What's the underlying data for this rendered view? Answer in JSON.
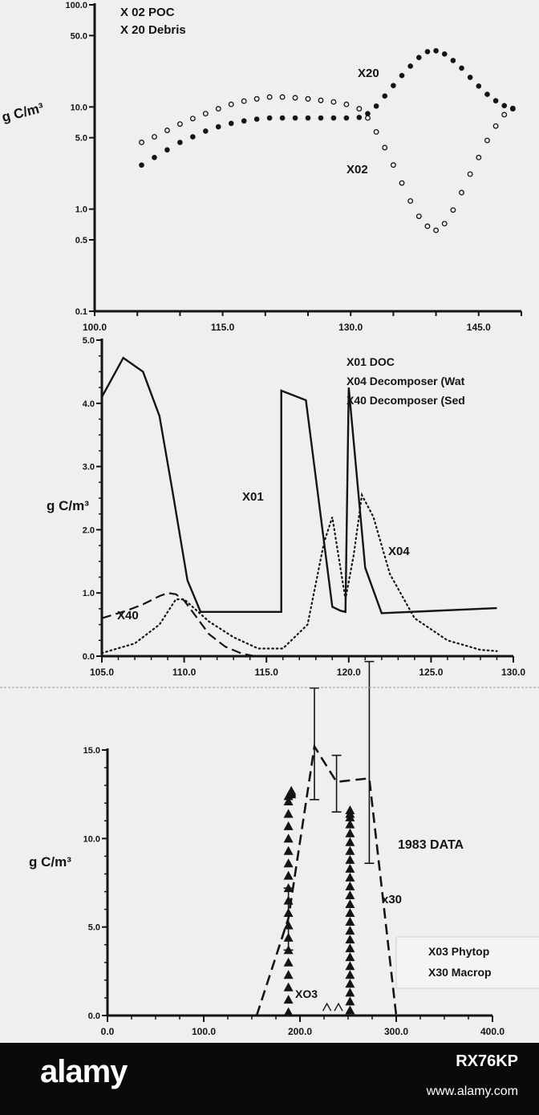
{
  "chart_data": [
    {
      "type": "scatter",
      "legend": [
        "X 02 POC",
        "X 20 Debris"
      ],
      "ylabel": "g C/m³",
      "y_scale": "log",
      "xlim": [
        100.0,
        150.0
      ],
      "ylim": [
        0.1,
        100.0
      ],
      "x_ticks": [
        "100.0",
        "115.0",
        "130.0",
        "145.0"
      ],
      "y_ticks": [
        {
          "v": 100.0,
          "t": "100.0"
        },
        {
          "v": 50.0,
          "t": "50.0"
        },
        {
          "v": 10.0,
          "t": "10.0"
        },
        {
          "v": 5.0,
          "t": "5.0"
        },
        {
          "v": 1.0,
          "t": "1.0"
        },
        {
          "v": 0.5,
          "t": "0.5"
        },
        {
          "v": 0.1,
          "t": "0.1"
        }
      ],
      "series": [
        {
          "label": "X02",
          "marker": "open-circle",
          "x": [
            105.5,
            107,
            108.5,
            110,
            111.5,
            113,
            114.5,
            116,
            117.5,
            119,
            120.5,
            122,
            123.5,
            125,
            126.5,
            128,
            129.5,
            131,
            132,
            133,
            134,
            135,
            136,
            137,
            138,
            139,
            140,
            141,
            142,
            143,
            144,
            145,
            146,
            147,
            148,
            149
          ],
          "y": [
            4.5,
            5.1,
            5.9,
            6.8,
            7.7,
            8.6,
            9.6,
            10.6,
            11.4,
            12.0,
            12.5,
            12.5,
            12.3,
            12.0,
            11.6,
            11.2,
            10.6,
            9.6,
            7.8,
            5.7,
            4.0,
            2.7,
            1.8,
            1.2,
            0.85,
            0.68,
            0.62,
            0.72,
            0.98,
            1.45,
            2.2,
            3.2,
            4.7,
            6.5,
            8.4,
            9.6
          ]
        },
        {
          "label": "X20",
          "marker": "filled-circle",
          "x": [
            105.5,
            107,
            108.5,
            110,
            111.5,
            113,
            114.5,
            116,
            117.5,
            119,
            120.5,
            122,
            123.5,
            125,
            126.5,
            128,
            129.5,
            131,
            132,
            133,
            134,
            135,
            136,
            137,
            138,
            139,
            140,
            141,
            142,
            143,
            144,
            145,
            146,
            147,
            148,
            149
          ],
          "y": [
            2.7,
            3.2,
            3.8,
            4.5,
            5.1,
            5.8,
            6.4,
            6.9,
            7.3,
            7.6,
            7.8,
            7.8,
            7.8,
            7.8,
            7.8,
            7.8,
            7.8,
            7.9,
            8.6,
            10.2,
            12.8,
            16.2,
            20.3,
            25.1,
            30.5,
            34.8,
            35.5,
            33.0,
            28.5,
            24.0,
            19.5,
            16.0,
            13.3,
            11.5,
            10.3,
            9.7
          ]
        }
      ]
    },
    {
      "type": "line",
      "legend": [
        "X01 DOC",
        "X04 Decomposer (Wat",
        "X40 Decomposer (Sed"
      ],
      "ylabel": "g C/m³",
      "xlim": [
        105.0,
        130.0
      ],
      "ylim": [
        0.0,
        5.0
      ],
      "x_ticks": [
        {
          "v": 105,
          "t": "105.0"
        },
        {
          "v": 110,
          "t": "110.0"
        },
        {
          "v": 115,
          "t": "115.0"
        },
        {
          "v": 120,
          "t": "120.0"
        },
        {
          "v": 125,
          "t": "125.0"
        },
        {
          "v": 130,
          "t": "130.0"
        }
      ],
      "y_ticks": [
        {
          "v": 0,
          "t": "0.0"
        },
        {
          "v": 1,
          "t": "1.0"
        },
        {
          "v": 2,
          "t": "2.0"
        },
        {
          "v": 3,
          "t": "3.0"
        },
        {
          "v": 4,
          "t": "4.0"
        },
        {
          "v": 5,
          "t": "5.0"
        }
      ],
      "series": [
        {
          "label": "X01",
          "style": "solid",
          "x": [
            105.0,
            106.3,
            107.5,
            108.5,
            109.3,
            110.2,
            111.0,
            115.9,
            115.9,
            117.4,
            119.0,
            119.5,
            119.8,
            120.0,
            121.0,
            122.0,
            129.0
          ],
          "y": [
            4.1,
            4.72,
            4.5,
            3.8,
            2.6,
            1.2,
            0.7,
            0.7,
            4.2,
            4.05,
            0.78,
            0.72,
            0.7,
            4.25,
            1.4,
            0.68,
            0.76
          ]
        },
        {
          "label": "X04",
          "style": "dotted",
          "x": [
            105.0,
            107.0,
            108.5,
            109.5,
            110.0,
            111.5,
            113.0,
            114.5,
            116.0,
            117.5,
            118.5,
            119.0,
            119.8,
            120.3,
            120.8,
            121.5,
            122.5,
            124.0,
            126.0,
            128.0,
            129.0
          ],
          "y": [
            0.05,
            0.2,
            0.5,
            0.9,
            0.9,
            0.55,
            0.3,
            0.12,
            0.12,
            0.5,
            1.8,
            2.2,
            0.9,
            1.6,
            2.55,
            2.2,
            1.3,
            0.6,
            0.25,
            0.1,
            0.08
          ]
        },
        {
          "label": "X40",
          "style": "dashed",
          "x": [
            105.0,
            106.5,
            107.5,
            108.5,
            109.0,
            109.5,
            110.0,
            110.8,
            111.5,
            112.5,
            113.5,
            114.3
          ],
          "y": [
            0.6,
            0.72,
            0.82,
            0.95,
            1.0,
            0.98,
            0.88,
            0.6,
            0.35,
            0.15,
            0.04,
            0.0
          ]
        }
      ]
    },
    {
      "type": "line",
      "title": "1983 DATA",
      "legend": [
        "X03 Phytop",
        "X30 Macrop"
      ],
      "ylabel": "g C/m³",
      "xlim": [
        0.0,
        400.0
      ],
      "ylim": [
        0.0,
        15.0
      ],
      "x_ticks": [
        {
          "v": 0,
          "t": "0.0"
        },
        {
          "v": 100,
          "t": "100.0"
        },
        {
          "v": 200,
          "t": "200.0"
        },
        {
          "v": 300,
          "t": "300.0"
        },
        {
          "v": 400,
          "t": "400.0"
        }
      ],
      "y_ticks": [
        {
          "v": 0,
          "t": "0.0"
        },
        {
          "v": 5,
          "t": "5.0"
        },
        {
          "v": 10,
          "t": "10.0"
        },
        {
          "v": 15,
          "t": "15.0"
        }
      ],
      "series": [
        {
          "label": "X30",
          "style": "dashed",
          "x": [
            155,
            188,
            215,
            238,
            272,
            300
          ],
          "y": [
            0.0,
            5.5,
            15.2,
            13.2,
            13.4,
            0.0
          ]
        },
        {
          "label": "X03",
          "marker": "triangle",
          "x": [
            188,
            188,
            188,
            188,
            188,
            188,
            188,
            188,
            188,
            188,
            188,
            188,
            188,
            188,
            188,
            188,
            188,
            188,
            188,
            191,
            191,
            191,
            252,
            252,
            252,
            252,
            252,
            252,
            252,
            252,
            252,
            252,
            252,
            252,
            252,
            252,
            252,
            252,
            252,
            252,
            252,
            252,
            252,
            252,
            252,
            252,
            252
          ],
          "y": [
            0.2,
            0.9,
            1.6,
            2.3,
            3.0,
            3.7,
            4.4,
            5.1,
            5.8,
            6.5,
            7.2,
            7.9,
            8.6,
            9.3,
            10.0,
            10.7,
            11.4,
            12.1,
            12.4,
            12.5,
            12.6,
            12.7,
            0.3,
            0.8,
            1.3,
            1.8,
            2.3,
            2.8,
            3.3,
            3.8,
            4.3,
            4.8,
            5.3,
            5.8,
            6.3,
            6.8,
            7.3,
            7.8,
            8.3,
            8.8,
            9.3,
            9.8,
            10.3,
            10.8,
            11.2,
            11.4,
            11.6
          ]
        },
        {
          "label": "",
          "style": "error-bars",
          "x": [
            188,
            215,
            238,
            272
          ],
          "y": [
            5.5,
            15.2,
            13.2,
            13.4
          ],
          "err_low": [
            3.7,
            12.2,
            11.5,
            8.6
          ],
          "err_high": [
            7.2,
            18.5,
            14.7,
            20.0
          ]
        }
      ],
      "annotations": [
        "1983 DATA",
        "x30",
        "XO3"
      ]
    }
  ],
  "footer": {
    "logo": "alamy",
    "stock_id": "RX76KP",
    "site": "www.alamy.com"
  }
}
